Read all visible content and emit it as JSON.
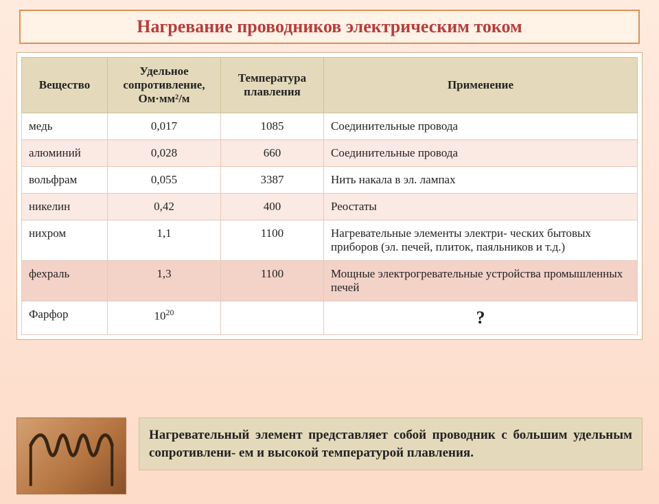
{
  "title": "Нагревание проводников электрическим током",
  "table": {
    "columns": [
      "Вещество",
      "Удельное сопротивление, Ом·мм²/м",
      "Температура плавления",
      "Применение"
    ],
    "rows": [
      {
        "substance": "медь",
        "resistivity": "0,017",
        "melt": "1085",
        "application": "Соединительные провода",
        "tint": false
      },
      {
        "substance": "алюминий",
        "resistivity": "0,028",
        "melt": "660",
        "application": "Соединительные провода",
        "tint": true
      },
      {
        "substance": "вольфрам",
        "resistivity": "0,055",
        "melt": "3387",
        "application": "Нить накала в эл. лампах",
        "tint": false
      },
      {
        "substance": "никелин",
        "resistivity": "0,42",
        "melt": "400",
        "application": "Реостаты",
        "tint": true
      },
      {
        "substance": "нихром",
        "resistivity": "1,1",
        "melt": "1100",
        "application": "Нагревательные элементы электри- ческих бытовых приборов (эл. печей, плиток, паяльников и т.д.)",
        "tint": false
      },
      {
        "substance": "фехраль",
        "resistivity": "1,3",
        "melt": "1100",
        "application": "Мощные электрогревательные устройства промышленных печей",
        "tint": "strong"
      },
      {
        "substance": "Фарфор",
        "resistivity_html": "10<span class='sup'>20</span>",
        "melt": "",
        "application_html": "<div class='qmark'>?</div>",
        "tint": false
      }
    ]
  },
  "note": "Нагревательный элемент представляет собой проводник с большим удельным сопротивлени- ем и высокой температурой плавления.",
  "colors": {
    "title_text": "#b73d3c",
    "title_border": "#e09050",
    "header_bg": "#e4dabb",
    "row_tint": "#fbe9e3",
    "row_tint_strong": "#f3d2c8",
    "page_bg_top": "#ffeadf",
    "page_bg_bottom": "#fddcc9"
  }
}
